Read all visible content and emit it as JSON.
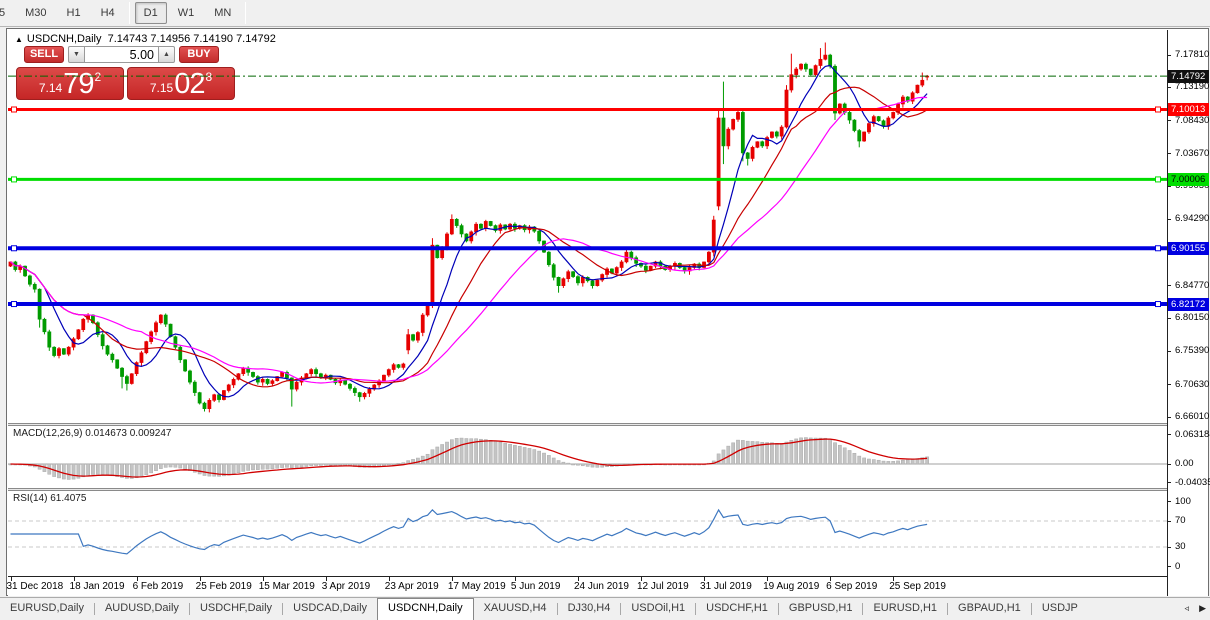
{
  "toolbar": {
    "timeframes": [
      "5",
      "M30",
      "H1",
      "H4",
      "D1",
      "W1",
      "MN"
    ],
    "active": "D1"
  },
  "chart": {
    "collapse_icon": "▲",
    "symbol_title": "USDCNH,Daily",
    "ohlc_text": "7.14743 7.14956 7.14190 7.14792"
  },
  "trade_panel": {
    "sell_label": "SELL",
    "buy_label": "BUY",
    "volume": "5.00",
    "spinner_down_icon": "▼",
    "spinner_up_icon": "▲",
    "sell_price": {
      "small": "7.14",
      "large": "79",
      "sup": "2"
    },
    "buy_price": {
      "small": "7.15",
      "large": "02",
      "sup": "8"
    }
  },
  "indicators": {
    "macd_label": "MACD(12,26,9) 0.014673 0.009247",
    "rsi_label": "RSI(14) 61.4075"
  },
  "price_axis": {
    "labels": [
      {
        "t": "7.17810",
        "v": 7.1781
      },
      {
        "t": "7.13190",
        "v": 7.1319
      },
      {
        "t": "7.08430",
        "v": 7.0843
      },
      {
        "t": "7.03670",
        "v": 7.0367
      },
      {
        "t": "6.99050",
        "v": 6.9905
      },
      {
        "t": "6.94290",
        "v": 6.9429
      },
      {
        "t": "6.89530",
        "v": 6.8953
      },
      {
        "t": "6.84770",
        "v": 6.8477
      },
      {
        "t": "6.80150",
        "v": 6.8015
      },
      {
        "t": "6.75390",
        "v": 6.7539
      },
      {
        "t": "6.70630",
        "v": 6.7063
      },
      {
        "t": "6.66010",
        "v": 6.6601
      }
    ],
    "badges": [
      {
        "t": "7.14792",
        "v": 7.14792,
        "bg": "#111111",
        "fg": "#FFFFFF"
      },
      {
        "t": "7.10013",
        "v": 7.10013,
        "bg": "#FF0000",
        "fg": "#FFFFFF"
      },
      {
        "t": "7.00006",
        "v": 7.00006,
        "bg": "#00DD00",
        "fg": "#000000"
      },
      {
        "t": "6.90155",
        "v": 6.90155,
        "bg": "#0000E0",
        "fg": "#FFFFFF"
      },
      {
        "t": "6.82172",
        "v": 6.82172,
        "bg": "#0000E0",
        "fg": "#FFFFFF"
      }
    ],
    "macd_labels": [
      {
        "t": "0.063184",
        "v": 0.063184
      },
      {
        "t": "0.00",
        "v": 0
      },
      {
        "t": "-0.040355",
        "v": -0.040355
      }
    ],
    "rsi_labels": [
      {
        "t": "100",
        "v": 100
      },
      {
        "t": "70",
        "v": 70
      },
      {
        "t": "30",
        "v": 30
      },
      {
        "t": "0",
        "v": 0
      }
    ]
  },
  "tabs": {
    "items": [
      "EURUSD,Daily",
      "AUDUSD,Daily",
      "USDCHF,Daily",
      "USDCAD,Daily",
      "USDCNH,Daily",
      "XAUUSD,H4",
      "DJ30,H4",
      "USDOil,H1",
      "USDCHF,H1",
      "GBPUSD,H1",
      "EURUSD,H1",
      "GBPAUD,H1",
      "USDJP"
    ],
    "active": "USDCNH,Daily",
    "scroll_left_icon": "◃",
    "scroll_right_icon": "▶"
  },
  "chart_data": {
    "type": "candlestick",
    "symbol": "USDCNH",
    "timeframe": "Daily",
    "title": "USDCNH,Daily",
    "current_bar": {
      "open": 7.14743,
      "high": 7.14956,
      "low": 7.1419,
      "close": 7.14792
    },
    "ylim": [
      6.6601,
      7.1781
    ],
    "grid": false,
    "x_tick_labels": [
      "31 Dec 2018",
      "18 Jan 2019",
      "6 Feb 2019",
      "25 Feb 2019",
      "15 Mar 2019",
      "3 Apr 2019",
      "23 Apr 2019",
      "17 May 2019",
      "5 Jun 2019",
      "24 Jun 2019",
      "12 Jul 2019",
      "31 Jul 2019",
      "19 Aug 2019",
      "6 Sep 2019",
      "25 Sep 2019"
    ],
    "x_tick_every": 13,
    "bull_color": "#E60000",
    "bear_color": "#009B00",
    "closes": [
      6.882,
      6.871,
      6.876,
      6.862,
      6.85,
      6.843,
      6.8,
      6.782,
      6.76,
      6.748,
      6.758,
      6.75,
      6.76,
      6.772,
      6.785,
      6.8,
      6.806,
      6.795,
      6.778,
      6.762,
      6.75,
      6.742,
      6.73,
      6.718,
      6.708,
      6.722,
      6.738,
      6.752,
      6.768,
      6.782,
      6.795,
      6.806,
      6.793,
      6.775,
      6.76,
      6.742,
      6.726,
      6.71,
      6.695,
      6.68,
      6.672,
      6.684,
      6.692,
      6.685,
      6.698,
      6.706,
      6.714,
      6.722,
      6.73,
      6.724,
      6.718,
      6.71,
      6.714,
      6.708,
      6.712,
      6.718,
      6.724,
      6.716,
      6.7,
      6.71,
      6.716,
      6.722,
      6.728,
      6.722,
      6.717,
      6.72,
      6.714,
      6.709,
      6.713,
      6.707,
      6.701,
      6.695,
      6.689,
      6.694,
      6.7,
      6.706,
      6.712,
      6.72,
      6.728,
      6.735,
      6.731,
      6.736,
      6.778,
      6.77,
      6.781,
      6.806,
      6.82,
      6.906,
      6.888,
      6.903,
      6.922,
      6.943,
      6.934,
      6.922,
      6.912,
      6.925,
      6.936,
      6.93,
      6.94,
      6.934,
      6.927,
      6.935,
      6.929,
      6.936,
      6.93,
      6.934,
      6.928,
      6.932,
      6.926,
      6.912,
      6.896,
      6.878,
      6.86,
      6.848,
      6.858,
      6.868,
      6.861,
      6.852,
      6.86,
      6.855,
      6.848,
      6.856,
      6.864,
      6.872,
      6.866,
      6.874,
      6.882,
      6.896,
      6.888,
      6.88,
      6.876,
      6.87,
      6.876,
      6.882,
      6.876,
      6.871,
      6.876,
      6.88,
      6.874,
      6.869,
      6.874,
      6.879,
      6.874,
      6.882,
      6.896,
      6.942,
      7.088,
      7.048,
      7.072,
      7.086,
      7.096,
      7.038,
      7.03,
      7.046,
      7.054,
      7.048,
      7.06,
      7.068,
      7.062,
      7.075,
      7.128,
      7.15,
      7.158,
      7.165,
      7.158,
      7.15,
      7.163,
      7.172,
      7.178,
      7.162,
      7.095,
      7.108,
      7.096,
      7.085,
      7.07,
      7.055,
      7.068,
      7.08,
      7.09,
      7.084,
      7.076,
      7.088,
      7.096,
      7.108,
      7.118,
      7.112,
      7.124,
      7.135,
      7.142,
      7.14792
    ],
    "ohlc_overrides": {
      "0": {
        "o": 6.876
      },
      "6": {
        "l": 6.788
      },
      "23": {
        "l": 6.701
      },
      "24": {
        "l": 6.698
      },
      "40": {
        "l": 6.668
      },
      "58": {
        "l": 6.675
      },
      "72": {
        "l": 6.682
      },
      "82": {
        "o": 6.756,
        "h": 6.786,
        "l": 6.75
      },
      "87": {
        "h": 6.916,
        "l": 6.816
      },
      "91": {
        "h": 6.95
      },
      "113": {
        "l": 6.838
      },
      "127": {
        "h": 6.902
      },
      "145": {
        "h": 6.948,
        "l": 6.89
      },
      "146": {
        "o": 6.962,
        "h": 7.098,
        "l": 6.956
      },
      "147": {
        "h": 7.14,
        "l": 7.022
      },
      "151": {
        "l": 7.026
      },
      "152": {
        "l": 7.02
      },
      "160": {
        "h": 7.135
      },
      "161": {
        "h": 7.18
      },
      "167": {
        "h": 7.188
      },
      "168": {
        "h": 7.196
      },
      "170": {
        "l": 7.085
      },
      "175": {
        "l": 7.046
      },
      "188": {
        "h": 7.153
      },
      "189": {
        "o": 7.14743,
        "h": 7.14956,
        "l": 7.1419
      }
    },
    "moving_averages": [
      {
        "period": 8,
        "color": "#0000B8"
      },
      {
        "period": 16,
        "color": "#C80000"
      },
      {
        "period": 28,
        "color": "#FF00FF"
      }
    ],
    "horizontal_lines": [
      {
        "value": 7.10013,
        "color": "#FF0000",
        "width": 3
      },
      {
        "value": 7.00006,
        "color": "#00DD00",
        "width": 3
      },
      {
        "value": 6.90155,
        "color": "#0000E0",
        "width": 4
      },
      {
        "value": 6.82172,
        "color": "#0000E0",
        "width": 4
      }
    ],
    "last_close_line": {
      "value": 7.14792,
      "color": "#006600",
      "style": "dash-dot"
    },
    "macd": {
      "fast": 12,
      "slow": 26,
      "signal": 9,
      "current_macd": 0.014673,
      "current_signal": 0.009247,
      "hist_color": "#C4C4C4",
      "signal_color": "#D00000",
      "axis_max": 0.063184,
      "axis_min": -0.040355
    },
    "rsi": {
      "period": 14,
      "current": 61.4075,
      "color": "#3E78C0",
      "levels": [
        70,
        30
      ]
    }
  }
}
